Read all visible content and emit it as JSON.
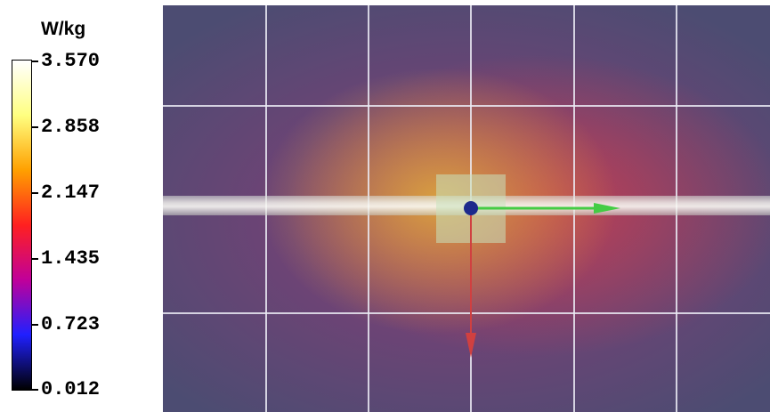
{
  "legend": {
    "unit": "W/kg",
    "ticks": [
      "3.570",
      "2.858",
      "2.147",
      "1.435",
      "0.723",
      "0.012"
    ],
    "colorscale": [
      "#ffffff",
      "#ffff80",
      "#ffa000",
      "#ff2020",
      "#c0009a",
      "#2020ff",
      "#000000"
    ]
  },
  "viewport": {
    "field_colors": {
      "hot": "#d8a040",
      "warm": "#c04050",
      "mid": "#8a3c78",
      "cool": "#4c4c72"
    },
    "axes": {
      "x_axis_color": "#44cc44",
      "y_axis_color": "#d04040",
      "origin_color": "#1c2a8c"
    }
  }
}
